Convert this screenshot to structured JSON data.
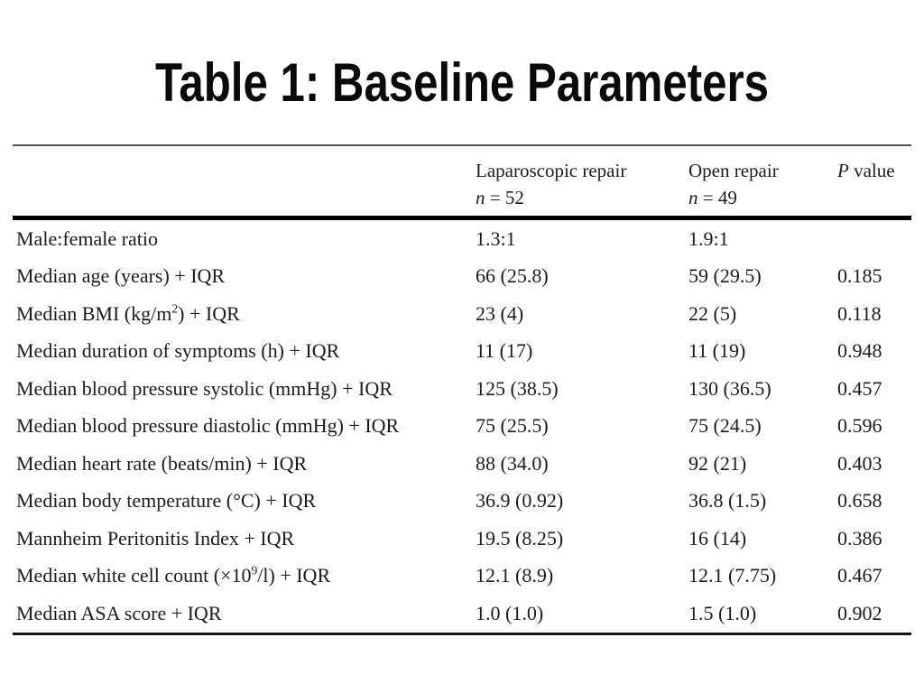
{
  "title": "Table 1: Baseline Parameters",
  "colors": {
    "background": "#ffffff",
    "text": "#1c1c1c",
    "thin_rule": "#555555",
    "thick_rule": "#000000"
  },
  "table": {
    "headers": {
      "parameter": "",
      "laparoscopic": {
        "title": "Laparoscopic repair",
        "n": [
          {
            "t": "n",
            "i": true
          },
          {
            "t": " = 52"
          }
        ]
      },
      "open": {
        "title": "Open repair",
        "n": [
          {
            "t": "n",
            "i": true
          },
          {
            "t": " = 49"
          }
        ]
      },
      "p_value": [
        {
          "t": "P",
          "i": true
        },
        {
          "t": " value"
        }
      ]
    },
    "rows": [
      {
        "label": [
          {
            "t": "Male:female ratio"
          }
        ],
        "lap": "1.3:1",
        "open": "1.9:1",
        "p": ""
      },
      {
        "label": [
          {
            "t": "Median age (years) + IQR"
          }
        ],
        "lap": "66 (25.8)",
        "open": "59 (29.5)",
        "p": "0.185"
      },
      {
        "label": [
          {
            "t": "Median BMI (kg/m"
          },
          {
            "t": "2",
            "sup": true
          },
          {
            "t": ") + IQR"
          }
        ],
        "lap": "23 (4)",
        "open": "22 (5)",
        "p": "0.118"
      },
      {
        "label": [
          {
            "t": "Median duration of symptoms (h) + IQR"
          }
        ],
        "lap": "11 (17)",
        "open": "11 (19)",
        "p": "0.948"
      },
      {
        "label": [
          {
            "t": "Median blood pressure systolic (mmHg) + IQR"
          }
        ],
        "lap": "125 (38.5)",
        "open": "130 (36.5)",
        "p": "0.457"
      },
      {
        "label": [
          {
            "t": "Median blood pressure diastolic (mmHg) + IQR"
          }
        ],
        "lap": "75 (25.5)",
        "open": "75 (24.5)",
        "p": "0.596"
      },
      {
        "label": [
          {
            "t": "Median heart rate (beats/min) + IQR"
          }
        ],
        "lap": "88 (34.0)",
        "open": "92 (21)",
        "p": "0.403"
      },
      {
        "label": [
          {
            "t": "Median body temperature (°C) + IQR"
          }
        ],
        "lap": "36.9 (0.92)",
        "open": "36.8 (1.5)",
        "p": "0.658"
      },
      {
        "label": [
          {
            "t": "Mannheim Peritonitis Index + IQR"
          }
        ],
        "lap": "19.5 (8.25)",
        "open": "16 (14)",
        "p": "0.386"
      },
      {
        "label": [
          {
            "t": "Median white cell count (×10"
          },
          {
            "t": "9",
            "sup": true
          },
          {
            "t": "/l) + IQR"
          }
        ],
        "lap": "12.1 (8.9)",
        "open": "12.1 (7.75)",
        "p": "0.467"
      },
      {
        "label": [
          {
            "t": "Median ASA score + IQR"
          }
        ],
        "lap": "1.0 (1.0)",
        "open": "1.5 (1.0)",
        "p": "0.902"
      }
    ]
  }
}
